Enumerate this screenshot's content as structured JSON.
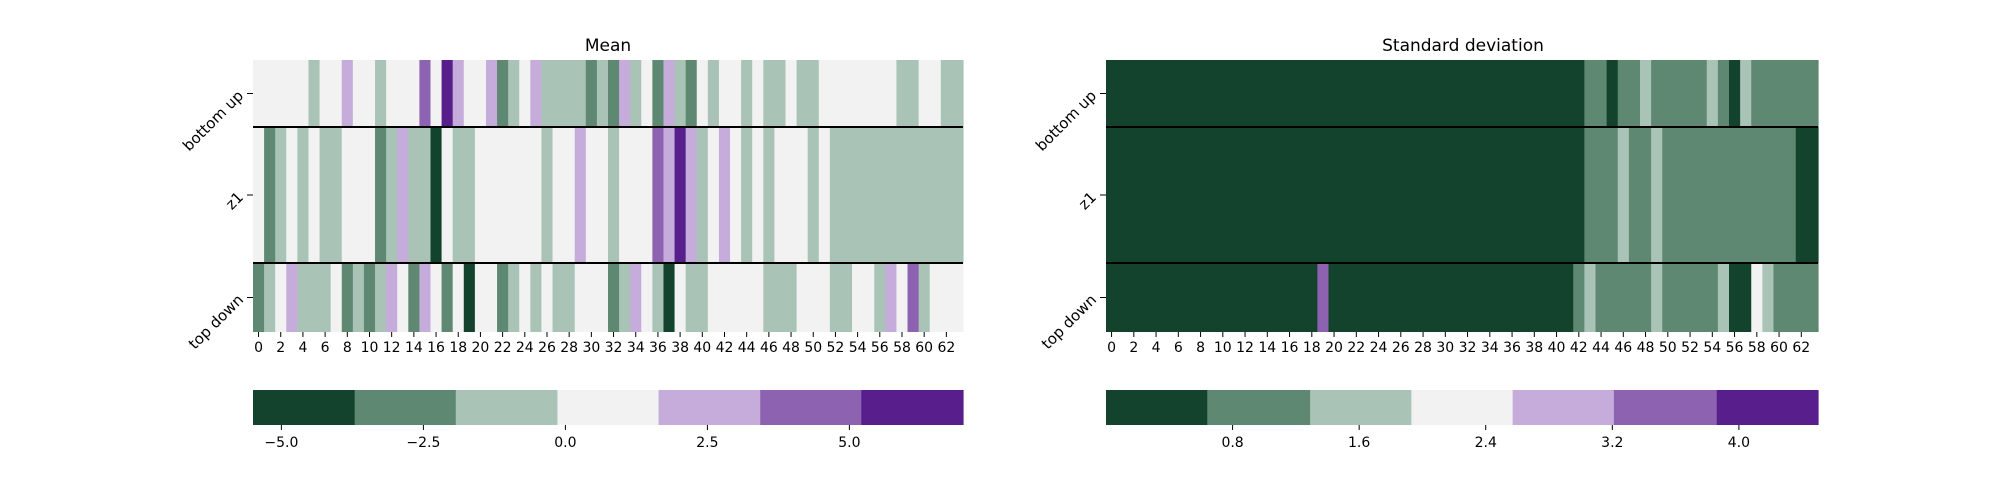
{
  "palette": [
    "#13432d",
    "#5e8872",
    "#a9c4b7",
    "#f2f2f2",
    "#c5acda",
    "#8d62b0",
    "#571e8c"
  ],
  "chart_data": [
    {
      "type": "heatmap",
      "title": "Mean",
      "rows": [
        "bottom up",
        "z1",
        "top down"
      ],
      "columns": 64,
      "xticks": [
        "0",
        "2",
        "4",
        "6",
        "8",
        "10",
        "12",
        "14",
        "16",
        "18",
        "20",
        "22",
        "24",
        "26",
        "28",
        "30",
        "32",
        "34",
        "36",
        "38",
        "40",
        "42",
        "44",
        "46",
        "48",
        "50",
        "52",
        "54",
        "56",
        "58",
        "60",
        "62"
      ],
      "colorbar": {
        "range": [
          -5.5,
          7.0
        ],
        "boundaries": [
          -5.5,
          -3.71,
          -1.93,
          -0.14,
          1.64,
          3.43,
          5.21,
          7.0
        ],
        "ticks": [
          {
            "value": -5.0,
            "label": "−5.0"
          },
          {
            "value": -2.5,
            "label": "−2.5"
          },
          {
            "value": 0.0,
            "label": "0.0"
          },
          {
            "value": 2.5,
            "label": "2.5"
          },
          {
            "value": 5.0,
            "label": "5.0"
          }
        ]
      },
      "bins": [
        [
          3,
          3,
          3,
          3,
          3,
          2,
          3,
          3,
          4,
          3,
          3,
          2,
          3,
          3,
          3,
          5,
          3,
          6,
          4,
          3,
          3,
          4,
          1,
          2,
          3,
          4,
          2,
          2,
          2,
          2,
          1,
          2,
          1,
          4,
          2,
          3,
          1,
          4,
          2,
          1,
          3,
          2,
          3,
          3,
          2,
          3,
          2,
          2,
          3,
          2,
          2,
          3,
          3,
          3,
          3,
          3,
          3,
          3,
          2,
          2,
          3,
          3,
          2,
          2
        ],
        [
          3,
          1,
          2,
          3,
          2,
          3,
          2,
          2,
          3,
          3,
          3,
          1,
          2,
          4,
          2,
          2,
          0,
          3,
          2,
          2,
          3,
          3,
          3,
          3,
          3,
          3,
          2,
          3,
          3,
          4,
          3,
          3,
          2,
          3,
          3,
          3,
          5,
          4,
          6,
          4,
          2,
          3,
          4,
          3,
          2,
          3,
          2,
          3,
          3,
          3,
          2,
          3,
          2,
          2,
          2,
          2,
          2,
          2,
          2,
          2,
          2,
          2,
          2,
          2
        ],
        [
          1,
          2,
          3,
          4,
          2,
          2,
          2,
          3,
          1,
          2,
          1,
          2,
          4,
          3,
          1,
          4,
          3,
          1,
          3,
          0,
          3,
          3,
          1,
          2,
          3,
          2,
          3,
          2,
          2,
          3,
          3,
          3,
          1,
          2,
          4,
          3,
          2,
          0,
          3,
          2,
          2,
          3,
          3,
          3,
          3,
          3,
          2,
          2,
          2,
          3,
          3,
          3,
          2,
          2,
          3,
          3,
          2,
          4,
          3,
          5,
          2,
          3,
          3,
          3
        ]
      ]
    },
    {
      "type": "heatmap",
      "title": "Standard deviation",
      "rows": [
        "bottom up",
        "z1",
        "top down"
      ],
      "columns": 64,
      "xticks": [
        "0",
        "2",
        "4",
        "6",
        "8",
        "10",
        "12",
        "14",
        "16",
        "18",
        "20",
        "22",
        "24",
        "26",
        "28",
        "30",
        "32",
        "34",
        "36",
        "38",
        "40",
        "42",
        "44",
        "46",
        "48",
        "50",
        "52",
        "54",
        "56",
        "58",
        "60",
        "62"
      ],
      "colorbar": {
        "range": [
          0.0,
          4.5
        ],
        "boundaries": [
          0.0,
          0.64,
          1.29,
          1.93,
          2.57,
          3.21,
          3.86,
          4.5
        ],
        "ticks": [
          {
            "value": 0.8,
            "label": "0.8"
          },
          {
            "value": 1.6,
            "label": "1.6"
          },
          {
            "value": 2.4,
            "label": "2.4"
          },
          {
            "value": 3.2,
            "label": "3.2"
          },
          {
            "value": 4.0,
            "label": "4.0"
          }
        ]
      },
      "bins": [
        [
          0,
          0,
          0,
          0,
          0,
          0,
          0,
          0,
          0,
          0,
          0,
          0,
          0,
          0,
          0,
          0,
          0,
          0,
          0,
          0,
          0,
          0,
          0,
          0,
          0,
          0,
          0,
          0,
          0,
          0,
          0,
          0,
          0,
          0,
          0,
          0,
          0,
          0,
          0,
          0,
          0,
          0,
          0,
          1,
          1,
          0,
          1,
          1,
          2,
          1,
          1,
          1,
          1,
          1,
          2,
          1,
          0,
          2,
          1,
          1,
          1,
          1,
          1,
          1
        ],
        [
          0,
          0,
          0,
          0,
          0,
          0,
          0,
          0,
          0,
          0,
          0,
          0,
          0,
          0,
          0,
          0,
          0,
          0,
          0,
          0,
          0,
          0,
          0,
          0,
          0,
          0,
          0,
          0,
          0,
          0,
          0,
          0,
          0,
          0,
          0,
          0,
          0,
          0,
          0,
          0,
          0,
          0,
          0,
          1,
          1,
          1,
          2,
          1,
          1,
          2,
          1,
          1,
          1,
          1,
          1,
          1,
          1,
          1,
          1,
          1,
          1,
          1,
          0,
          0
        ],
        [
          0,
          0,
          0,
          0,
          0,
          0,
          0,
          0,
          0,
          0,
          0,
          0,
          0,
          0,
          0,
          0,
          0,
          0,
          0,
          5,
          0,
          0,
          0,
          0,
          0,
          0,
          0,
          0,
          0,
          0,
          0,
          0,
          0,
          0,
          0,
          0,
          0,
          0,
          0,
          0,
          0,
          0,
          1,
          2,
          1,
          1,
          1,
          1,
          1,
          2,
          1,
          1,
          1,
          1,
          1,
          2,
          0,
          0,
          3,
          2,
          1,
          1,
          1,
          1
        ]
      ]
    }
  ]
}
